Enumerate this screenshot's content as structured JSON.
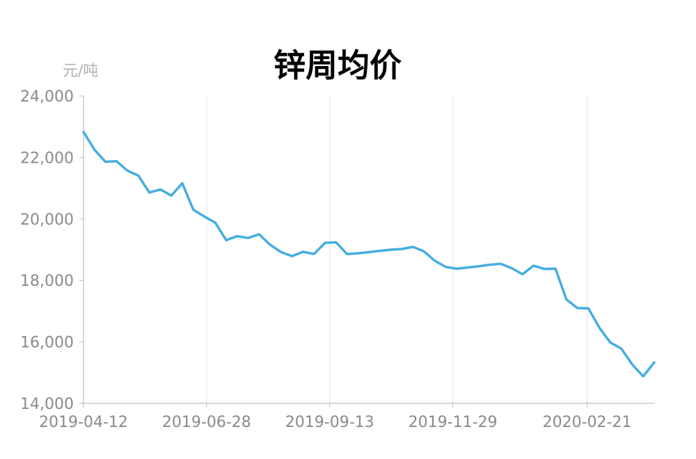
{
  "chart_data": {
    "type": "line",
    "title": "锌周均价",
    "ylabel": "元/吨",
    "xlabel": "",
    "ylim": [
      14000,
      24000
    ],
    "yticks": [
      "14,000",
      "16,000",
      "18,000",
      "20,000",
      "22,000",
      "24,000"
    ],
    "xticks": [
      "2019-04-12",
      "2019-06-28",
      "2019-09-13",
      "2019-11-29",
      "2020-02-21"
    ],
    "grid": "vertical",
    "line_color": "#45ADE0",
    "x_start": "2019-04-12",
    "x_end": "2020-04-03",
    "series": [
      {
        "values": [
          22830,
          22250,
          21860,
          21880,
          21570,
          21410,
          20860,
          20960,
          20760,
          21160,
          20300,
          20080,
          19880,
          19310,
          19440,
          19380,
          19500,
          19160,
          18920,
          18790,
          18930,
          18860,
          19220,
          19240,
          18860,
          18880,
          18920,
          18960,
          19000,
          19020,
          19090,
          18950,
          18640,
          18440,
          18380,
          18420,
          18460,
          18510,
          18540,
          18400,
          18200,
          18480,
          18370,
          18380,
          17380,
          17100,
          17090,
          16460,
          15980,
          15780,
          15260,
          14880,
          15330
        ]
      }
    ]
  }
}
